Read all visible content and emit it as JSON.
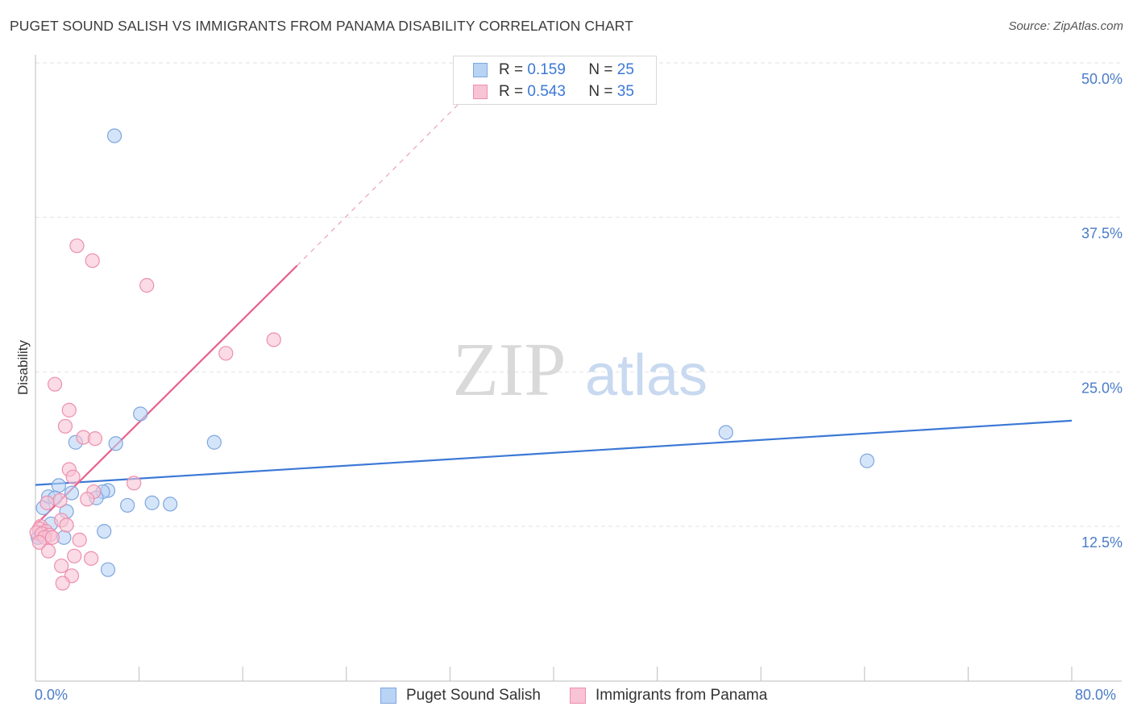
{
  "header": {
    "title": "PUGET SOUND SALISH VS IMMIGRANTS FROM PANAMA DISABILITY CORRELATION CHART",
    "source": "Source: ZipAtlas.com"
  },
  "colors": {
    "blue": "#3b78d6",
    "blue_fill": "#b9d3f5",
    "pink": "#e8608e",
    "pink_fill": "#f8c3d4",
    "grid": "#e2e2e2",
    "tick_label": "#4a7cc9"
  },
  "legend": {
    "rows": [
      {
        "r_label": "R =",
        "r_value": "0.159",
        "n_label": "N =",
        "n_value": "25"
      },
      {
        "r_label": "R =",
        "r_value": "0.543",
        "n_label": "N =",
        "n_value": "35"
      }
    ]
  },
  "watermark": {
    "zip": "ZIP",
    "atlas": "atlas"
  },
  "chart_data": {
    "type": "scatter",
    "title": "PUGET SOUND SALISH VS IMMIGRANTS FROM PANAMA DISABILITY CORRELATION CHART",
    "xlabel": "",
    "ylabel": "Disability",
    "xlim": [
      0,
      80
    ],
    "ylim": [
      0,
      50
    ],
    "x_tick_labels": [
      "0.0%",
      "80.0%"
    ],
    "y_ticks": [
      12.5,
      25.0,
      37.5,
      50.0
    ],
    "y_tick_labels": [
      "12.5%",
      "25.0%",
      "37.5%",
      "50.0%"
    ],
    "grid": true,
    "legend_position": "top-center",
    "series": [
      {
        "name": "Puget Sound Salish",
        "color": "#3b78d6",
        "points": [
          [
            6.1,
            44.1
          ],
          [
            8.1,
            21.6
          ],
          [
            3.1,
            19.3
          ],
          [
            6.2,
            19.2
          ],
          [
            13.8,
            19.3
          ],
          [
            53.3,
            20.1
          ],
          [
            64.2,
            17.8
          ],
          [
            1.8,
            15.8
          ],
          [
            2.8,
            15.2
          ],
          [
            5.6,
            15.4
          ],
          [
            5.2,
            15.3
          ],
          [
            4.7,
            14.8
          ],
          [
            1.0,
            14.9
          ],
          [
            1.5,
            14.8
          ],
          [
            7.1,
            14.2
          ],
          [
            9.0,
            14.4
          ],
          [
            10.4,
            14.3
          ],
          [
            0.6,
            14.0
          ],
          [
            2.4,
            13.7
          ],
          [
            1.2,
            12.7
          ],
          [
            5.3,
            12.1
          ],
          [
            0.4,
            11.8
          ],
          [
            2.2,
            11.6
          ],
          [
            0.2,
            11.6
          ],
          [
            5.6,
            9.0
          ]
        ],
        "trend": {
          "x": [
            0,
            80
          ],
          "y": [
            15.85,
            21.05
          ],
          "style": "solid"
        }
      },
      {
        "name": "Immigrants from Panama",
        "color": "#e8608e",
        "points": [
          [
            3.2,
            35.2
          ],
          [
            4.4,
            34.0
          ],
          [
            8.6,
            32.0
          ],
          [
            18.4,
            27.6
          ],
          [
            14.7,
            26.5
          ],
          [
            1.5,
            24.0
          ],
          [
            2.6,
            21.9
          ],
          [
            2.3,
            20.6
          ],
          [
            3.7,
            19.7
          ],
          [
            4.6,
            19.6
          ],
          [
            2.6,
            17.1
          ],
          [
            2.9,
            16.5
          ],
          [
            7.6,
            16.0
          ],
          [
            4.5,
            15.3
          ],
          [
            4.0,
            14.7
          ],
          [
            1.9,
            14.6
          ],
          [
            0.9,
            14.4
          ],
          [
            2.0,
            13.0
          ],
          [
            0.4,
            12.5
          ],
          [
            2.4,
            12.6
          ],
          [
            0.3,
            12.3
          ],
          [
            0.8,
            12.1
          ],
          [
            0.1,
            12.0
          ],
          [
            0.5,
            11.9
          ],
          [
            1.1,
            11.8
          ],
          [
            0.7,
            11.6
          ],
          [
            1.3,
            11.6
          ],
          [
            0.3,
            11.2
          ],
          [
            3.4,
            11.4
          ],
          [
            1.0,
            10.5
          ],
          [
            3.0,
            10.1
          ],
          [
            4.3,
            9.9
          ],
          [
            2.0,
            9.3
          ],
          [
            2.8,
            8.5
          ],
          [
            2.1,
            7.9
          ]
        ],
        "trend": {
          "x": [
            0,
            20.2
          ],
          "y": [
            12.6,
            33.6
          ],
          "style": "solid",
          "extension": {
            "x": [
              20.2,
              34.5
            ],
            "y": [
              33.6,
              48.6
            ],
            "style": "dashed"
          }
        }
      }
    ]
  },
  "bottom_legend": {
    "items": [
      {
        "label": "Puget Sound Salish"
      },
      {
        "label": "Immigrants from Panama"
      }
    ]
  }
}
